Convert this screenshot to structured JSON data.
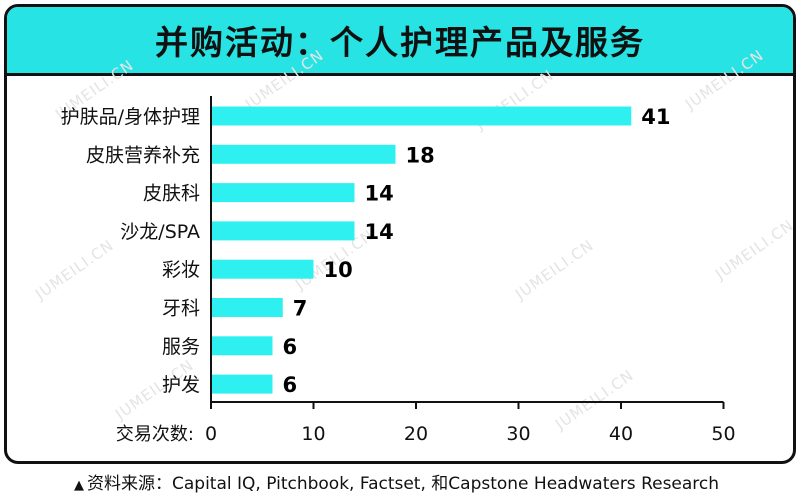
{
  "title": "并购活动：个人护理产品及服务",
  "source_text": "资料来源：Capital IQ, Pitchbook, Factset, 和Capstone Headwaters Research",
  "source_marker": "▲",
  "watermark": "JUMEILI.CN",
  "colors": {
    "accent": "#27e3e3",
    "bar": "#2ff0f0",
    "border": "#111111"
  },
  "chart_data": {
    "type": "bar",
    "orientation": "horizontal",
    "categories": [
      "护肤品/身体护理",
      "皮肤营养补充",
      "皮肤科",
      "沙龙/SPA",
      "彩妆",
      "牙科",
      "服务",
      "护发"
    ],
    "values": [
      41,
      18,
      14,
      14,
      10,
      7,
      6,
      6
    ],
    "xlabel": "交易次数:",
    "xlim": [
      0,
      50
    ],
    "xticks": [
      0,
      10,
      20,
      30,
      40,
      50
    ],
    "title": "并购活动：个人护理产品及服务",
    "data_labels": true,
    "grid": false
  }
}
